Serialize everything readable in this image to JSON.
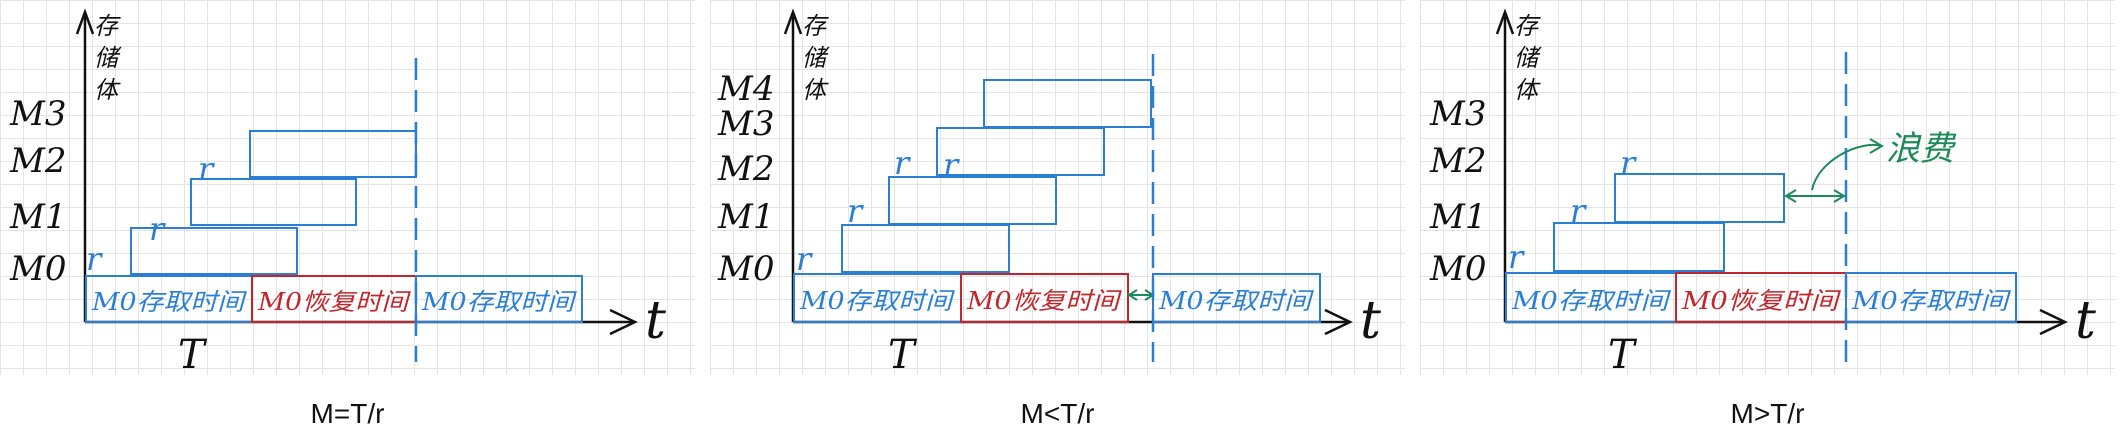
{
  "colors": {
    "axis": "#111111",
    "blue": "#2a7fd4",
    "red": "#c0262b",
    "green": "#1e8a5a",
    "dash": "#2a7fd4"
  },
  "labels": {
    "y_axis": "存储体",
    "m0": "M0",
    "m1": "M1",
    "m2": "M2",
    "m3": "M3",
    "m4": "M4",
    "time": "t",
    "T": "T",
    "tick": "r",
    "m0_access": "M0存取时间",
    "m0_recover": "M0恢复时间",
    "waste": "浪费"
  },
  "panels": [
    {
      "caption": "M=T/r"
    },
    {
      "caption": "M<T/r"
    },
    {
      "caption": "M>T/r"
    }
  ]
}
